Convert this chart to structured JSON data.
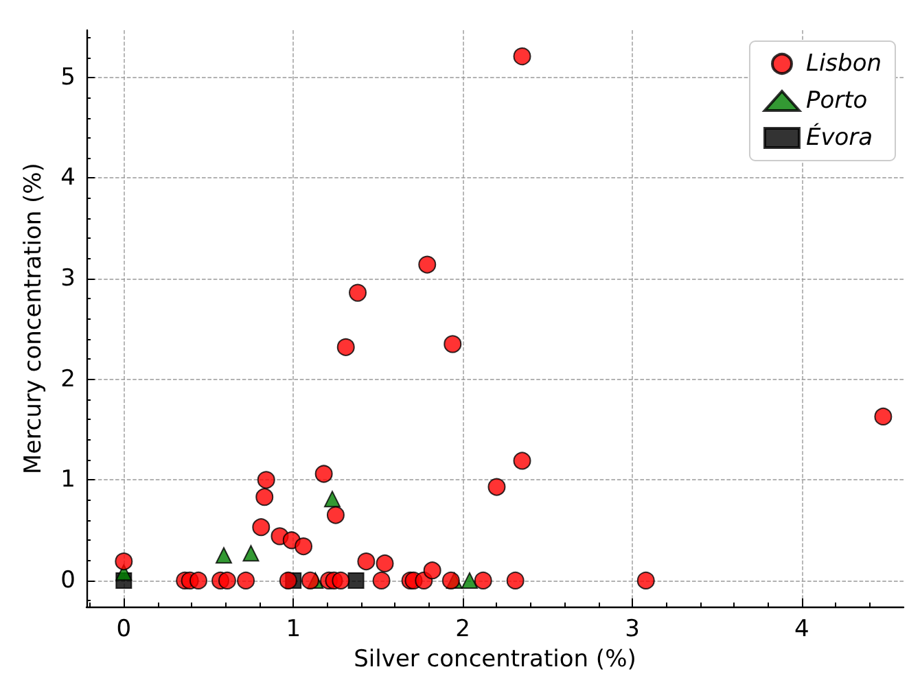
{
  "chart_data": {
    "type": "scatter",
    "xlabel": "Silver concentration (%)",
    "ylabel": "Mercury concentration (%)",
    "xlim": [
      -0.22,
      4.6
    ],
    "ylim": [
      -0.26,
      5.47
    ],
    "xticks": [
      0,
      1,
      2,
      3,
      4
    ],
    "yticks": [
      0,
      1,
      2,
      3,
      4,
      5
    ],
    "grid": true,
    "legend": "top right",
    "series": [
      {
        "name": "Lisbon",
        "color": "#ff0000",
        "marker": "circle",
        "x": [
          0,
          0.36,
          0.39,
          0.44,
          0.57,
          0.61,
          0.72,
          0.97,
          1.1,
          1.21,
          1.24,
          1.28,
          1.52,
          1.69,
          1.71,
          1.77,
          1.93,
          2.12,
          2.31,
          3.08,
          0.84,
          0.83,
          0.81,
          0.92,
          0.99,
          1.06,
          1.18,
          1.25,
          1.43,
          1.54,
          1.82,
          2.2,
          2.35,
          4.48,
          2.35,
          1.79,
          1.38,
          1.31,
          1.94
        ],
        "values": [
          0.19,
          0,
          0,
          0,
          0,
          0,
          0,
          0,
          0,
          0,
          0,
          0,
          0,
          0,
          0,
          0,
          0,
          0,
          0,
          0,
          1.0,
          0.83,
          0.53,
          0.44,
          0.4,
          0.34,
          1.06,
          0.65,
          0.19,
          0.17,
          0.1,
          0.93,
          1.19,
          1.63,
          5.21,
          3.14,
          2.86,
          2.32,
          2.35
        ]
      },
      {
        "name": "Porto",
        "color": "#007f00",
        "marker": "triangle",
        "x": [
          0,
          0.59,
          0.75,
          1.23,
          1.13,
          1.95,
          2.04
        ],
        "values": [
          0.08,
          0.25,
          0.27,
          0.81,
          0,
          0,
          0
        ]
      },
      {
        "name": "Évora",
        "color": "#000000",
        "marker": "square",
        "x": [
          0,
          1.0,
          1.37
        ],
        "values": [
          0,
          0,
          0
        ]
      }
    ]
  }
}
